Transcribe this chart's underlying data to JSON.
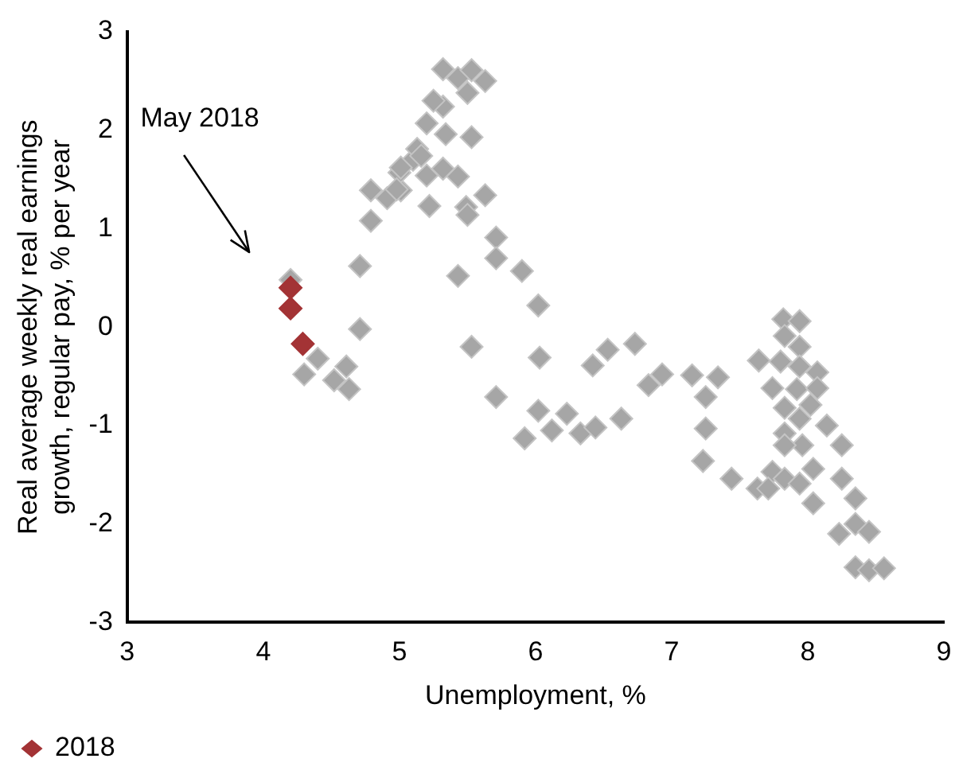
{
  "chart_data": {
    "type": "scatter",
    "xlabel": "Unemployment, %",
    "ylabel": "Real average weekly real earnings growth, regular pay, % per year",
    "xlim": [
      3,
      9
    ],
    "xticks": [
      3,
      4,
      5,
      6,
      7,
      8,
      9
    ],
    "ylim": [
      -3,
      3
    ],
    "yticks": [
      -3,
      -2,
      -1,
      0,
      1,
      2,
      3
    ],
    "grid": false,
    "legend": "bottom left",
    "marker": "diamond",
    "annotations": [
      "May 2018"
    ],
    "series": [
      {
        "color": "#a6a6a6",
        "x": [
          4.2,
          4.3,
          4.4,
          4.61,
          4.52,
          4.63,
          4.71,
          4.71,
          4.79,
          4.79,
          4.91,
          5.01,
          5.0,
          5.1,
          5.22,
          5.2,
          5.32,
          5.32,
          5.43,
          5.53,
          5.63,
          5.5,
          5.34,
          5.53,
          5.32,
          5.43,
          5.2,
          5.49,
          5.63,
          5.5,
          5.71,
          5.71,
          5.43,
          5.9,
          5.53,
          5.71,
          5.01,
          5.13,
          5.25,
          5.16,
          4.98,
          6.02,
          6.03,
          6.02,
          5.92,
          6.12,
          6.23,
          6.33,
          6.44,
          6.63,
          6.42,
          6.53,
          6.73,
          6.83,
          6.93,
          7.15,
          7.34,
          7.25,
          7.25,
          7.23,
          7.44,
          7.64,
          7.63,
          7.82,
          7.94,
          7.83,
          7.94,
          7.8,
          7.94,
          8.07,
          7.74,
          7.92,
          8.07,
          8.02,
          7.83,
          7.94,
          8.14,
          7.83,
          7.96,
          7.83,
          8.25,
          8.04,
          7.74,
          7.83,
          7.94,
          8.25,
          8.35,
          8.04,
          7.71,
          8.23,
          8.35,
          8.45,
          8.35,
          8.45,
          8.56
        ],
        "values": [
          0.48,
          -0.48,
          -0.32,
          -0.4,
          -0.54,
          -0.63,
          -0.02,
          0.62,
          1.08,
          1.39,
          1.31,
          1.39,
          1.57,
          1.7,
          1.23,
          2.07,
          2.24,
          2.62,
          2.53,
          2.61,
          2.5,
          2.38,
          1.96,
          1.93,
          1.61,
          1.53,
          1.54,
          1.22,
          1.34,
          1.14,
          0.91,
          0.7,
          0.52,
          0.57,
          -0.2,
          -0.71,
          1.62,
          1.81,
          2.3,
          1.74,
          1.4,
          0.22,
          -0.31,
          -0.85,
          -1.13,
          -1.05,
          -0.88,
          -1.08,
          -1.02,
          -0.93,
          -0.39,
          -0.23,
          -0.17,
          -0.59,
          -0.48,
          -0.49,
          -0.51,
          -0.71,
          -1.03,
          -1.36,
          -1.54,
          -0.34,
          -1.64,
          0.08,
          0.06,
          -0.09,
          -0.2,
          -0.35,
          -0.4,
          -0.46,
          -0.62,
          -0.63,
          -0.62,
          -0.79,
          -0.82,
          -0.93,
          -1.0,
          -1.08,
          -1.2,
          -1.2,
          -1.2,
          -1.44,
          -1.47,
          -1.54,
          -1.59,
          -1.54,
          -1.74,
          -1.79,
          -1.64,
          -2.1,
          -2.0,
          -2.08,
          -2.44,
          -2.47,
          -2.45
        ]
      },
      {
        "name": "2018",
        "color": "#a33335",
        "x": [
          4.2,
          4.2,
          4.29
        ],
        "values": [
          0.4,
          0.19,
          -0.17
        ]
      }
    ]
  }
}
